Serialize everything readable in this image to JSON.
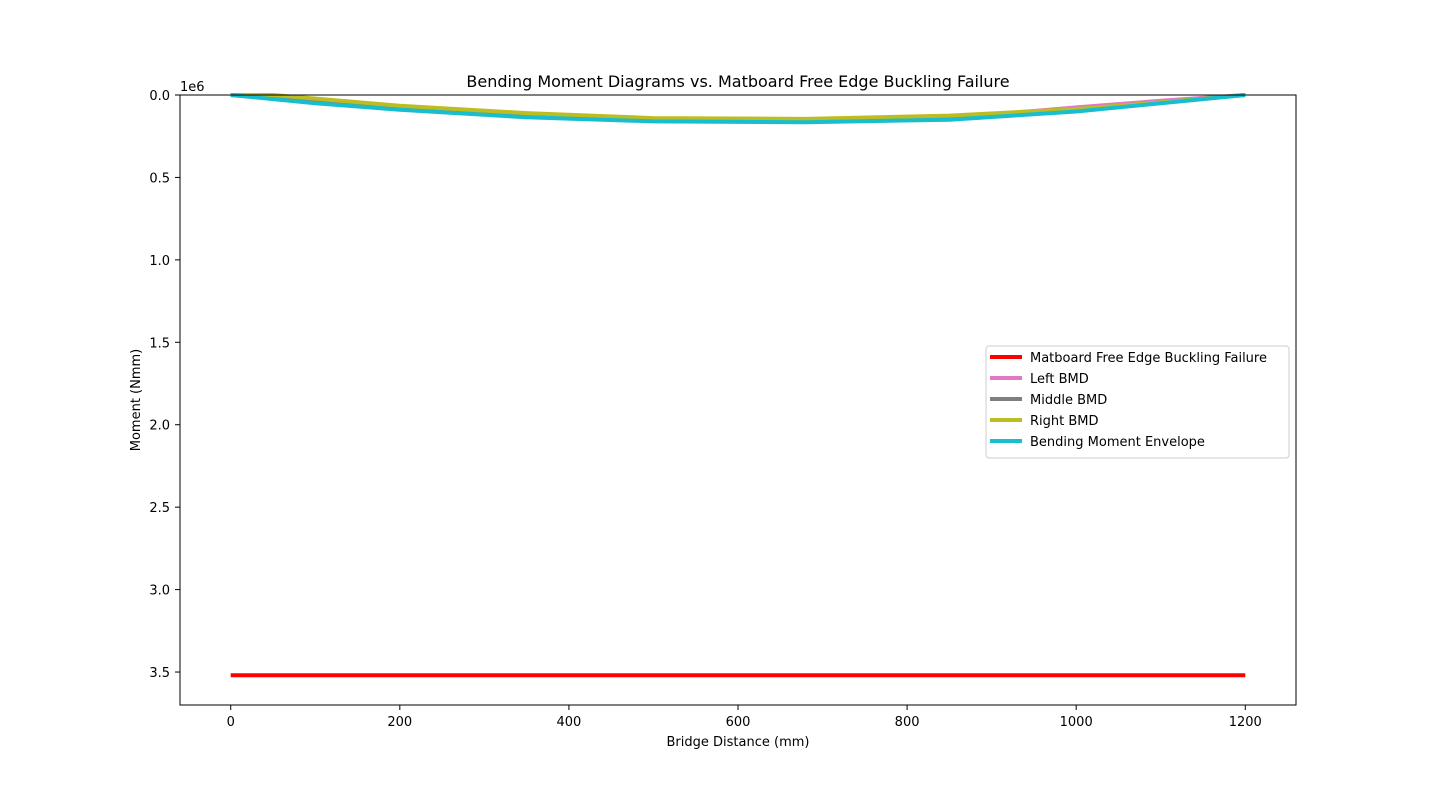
{
  "chart_data": {
    "type": "line",
    "title": "Bending Moment Diagrams vs. Matboard Free Edge Buckling Failure",
    "xlabel": "Bridge Distance (mm)",
    "ylabel": "Moment (Nmm)",
    "y_offset_label": "1e6",
    "xlim": [
      -60,
      1260
    ],
    "ylim": [
      3.7,
      0.0
    ],
    "y_axis_inverted": true,
    "x_ticks": [
      0,
      200,
      400,
      600,
      800,
      1000,
      1200
    ],
    "x_tick_labels": [
      "0",
      "200",
      "400",
      "600",
      "800",
      "1000",
      "1200"
    ],
    "y_ticks": [
      0.0,
      0.5,
      1.0,
      1.5,
      2.0,
      2.5,
      3.0,
      3.5
    ],
    "y_tick_labels": [
      "0.0",
      "0.5",
      "1.0",
      "1.5",
      "2.0",
      "2.5",
      "3.0",
      "3.5"
    ],
    "grid": false,
    "legend_position": "center-right",
    "series": [
      {
        "name": "Matboard Free Edge Buckling Failure",
        "color": "#ff0000",
        "x": [
          0,
          1200
        ],
        "y": [
          3.52,
          3.52
        ]
      },
      {
        "name": "Left BMD",
        "color": "#e377c2",
        "x": [
          0,
          200,
          350,
          500,
          680,
          850,
          1000,
          1100,
          1200
        ],
        "y": [
          0.0,
          0.085,
          0.13,
          0.155,
          0.16,
          0.14,
          0.075,
          0.035,
          0.0
        ]
      },
      {
        "name": "Middle BMD",
        "color": "#7f7f7f",
        "x": [
          0,
          100,
          200,
          350,
          500,
          680,
          850,
          1000,
          1100,
          1200
        ],
        "y": [
          0.0,
          0.04,
          0.08,
          0.125,
          0.15,
          0.155,
          0.14,
          0.09,
          0.045,
          0.0
        ]
      },
      {
        "name": "Right BMD",
        "color": "#bcbd22",
        "x": [
          0,
          50,
          200,
          350,
          500,
          680,
          850,
          1000,
          1100,
          1200
        ],
        "y": [
          0.0,
          0.0,
          0.065,
          0.11,
          0.14,
          0.145,
          0.125,
          0.085,
          0.045,
          0.0
        ]
      },
      {
        "name": "Bending Moment Envelope",
        "color": "#17becf",
        "x": [
          0,
          100,
          200,
          350,
          500,
          680,
          850,
          1000,
          1100,
          1200
        ],
        "y": [
          0.0,
          0.05,
          0.09,
          0.135,
          0.16,
          0.165,
          0.15,
          0.1,
          0.05,
          0.0
        ]
      }
    ]
  }
}
